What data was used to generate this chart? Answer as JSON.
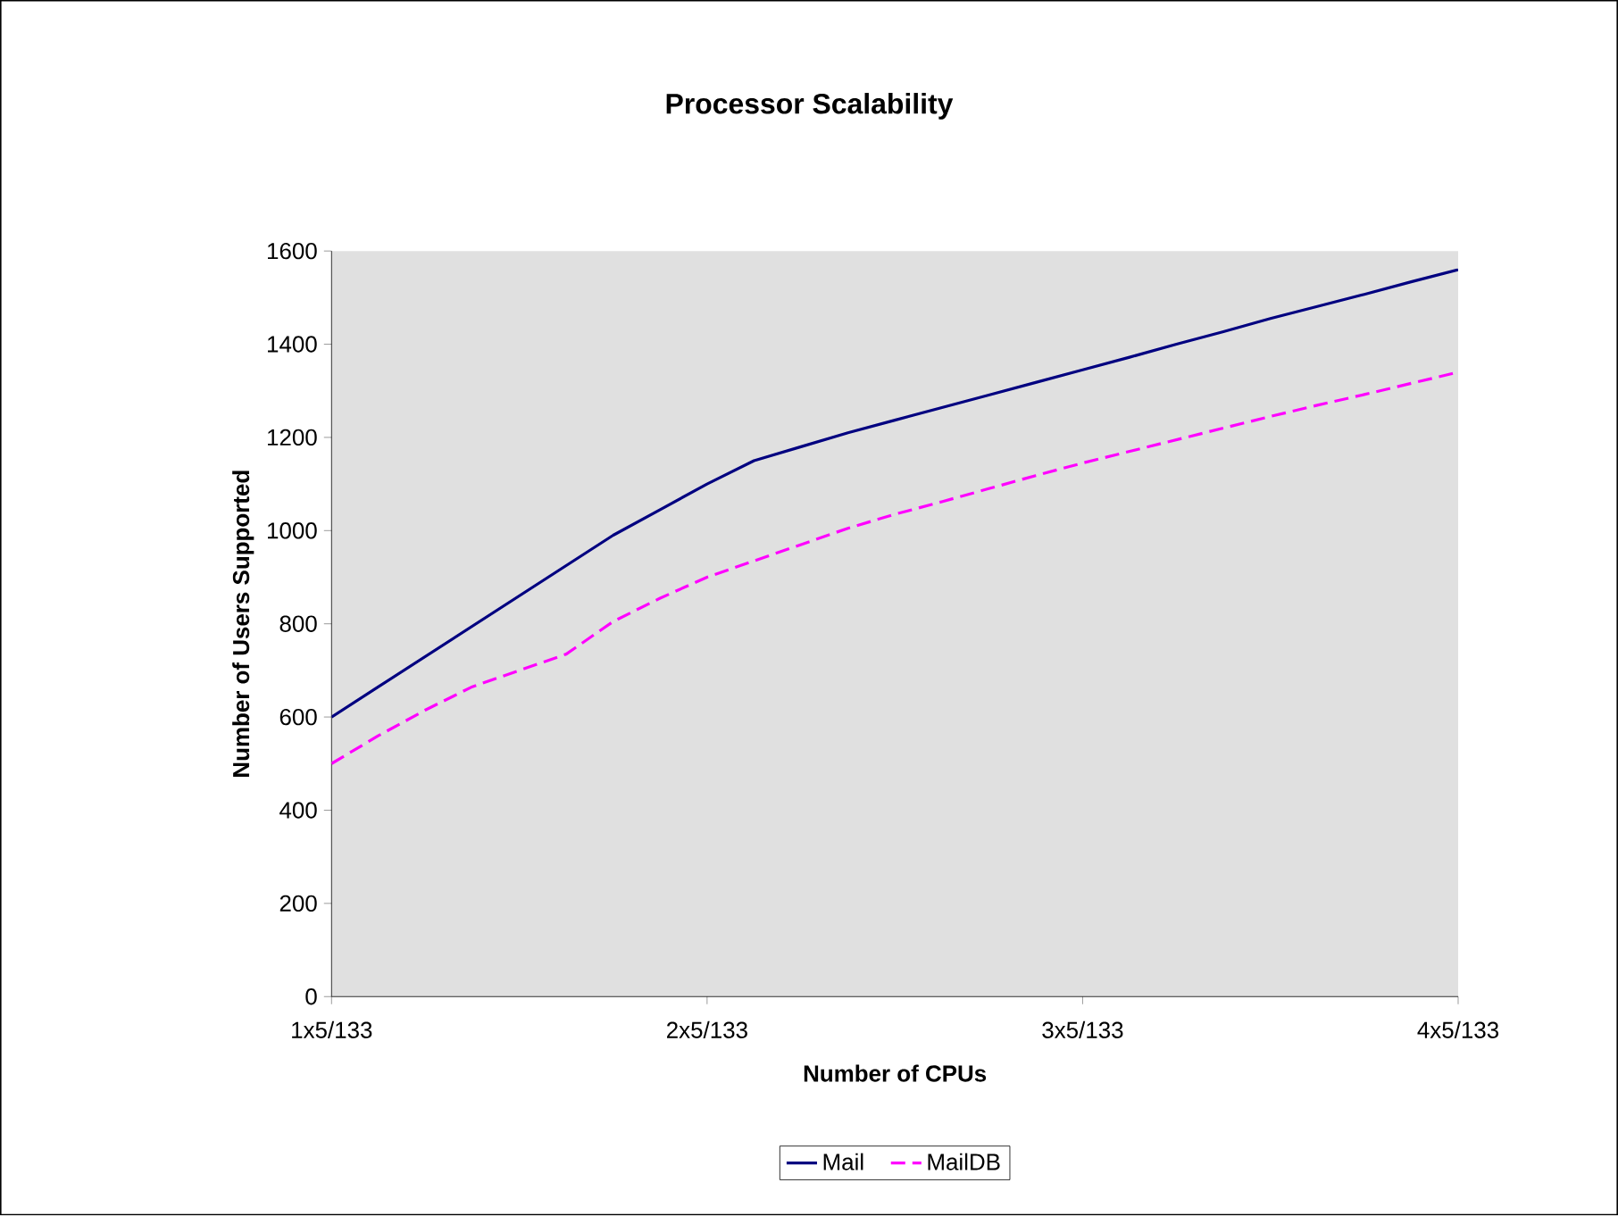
{
  "chart_data": {
    "type": "line",
    "title": "Processor Scalability",
    "xlabel": "Number of CPUs",
    "ylabel": "Number of Users Supported",
    "categories": [
      "1x5/133",
      null,
      null,
      null,
      null,
      null,
      null,
      null,
      "2x5/133",
      null,
      null,
      null,
      null,
      null,
      null,
      null,
      "3x5/133",
      null,
      null,
      null,
      null,
      null,
      null,
      null,
      "4x5/133"
    ],
    "ylim": [
      0,
      1600
    ],
    "yticks": [
      0,
      200,
      400,
      600,
      800,
      1000,
      1200,
      1400,
      1600
    ],
    "legend": "bottom",
    "series": [
      {
        "name": "Mail",
        "color": "#000080",
        "line_style": "solid",
        "values": [
          600,
          665,
          730,
          795,
          860,
          925,
          990,
          1045,
          1100,
          1150,
          1180,
          1210,
          1237,
          1264,
          1291,
          1318,
          1345,
          1372,
          1400,
          1427,
          1455,
          1481,
          1507,
          1534,
          1560
        ]
      },
      {
        "name": "MailDB",
        "color": "#ff00ff",
        "line_style": "dashed",
        "values": [
          500,
          560,
          615,
          665,
          700,
          735,
          805,
          855,
          900,
          935,
          970,
          1005,
          1035,
          1062,
          1090,
          1118,
          1145,
          1170,
          1195,
          1220,
          1245,
          1269,
          1292,
          1316,
          1340
        ]
      }
    ]
  }
}
